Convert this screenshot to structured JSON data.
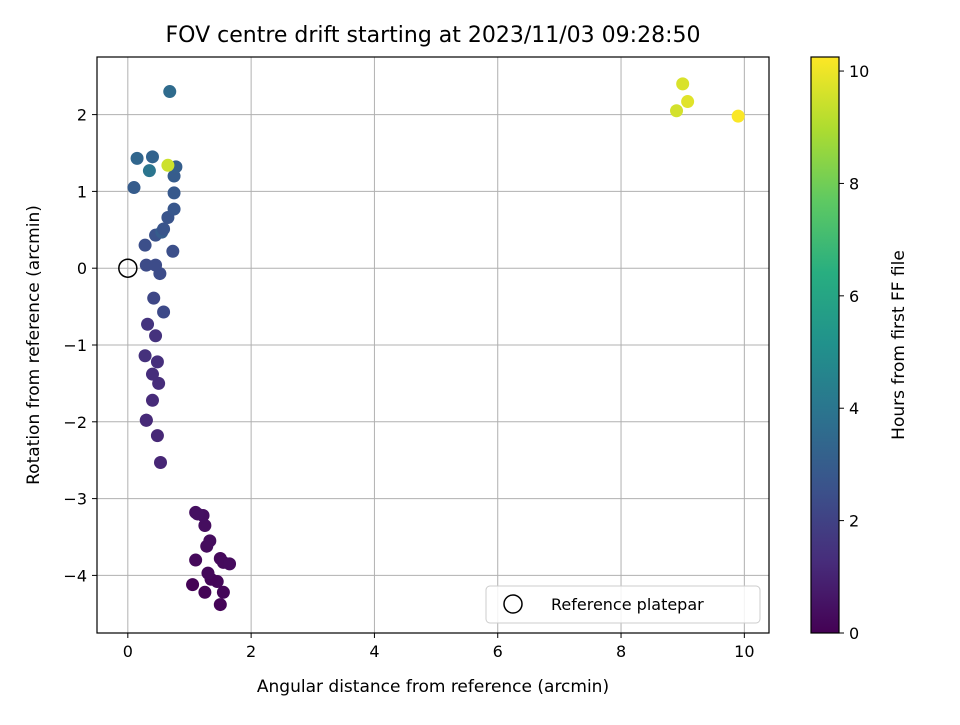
{
  "chart_data": {
    "type": "scatter",
    "title": "FOV centre drift starting at 2023/11/03 09:28:50",
    "xlabel": "Angular distance from reference (arcmin)",
    "ylabel": "Rotation from reference (arcmin)",
    "xlim": [
      -0.5,
      10.4
    ],
    "ylim": [
      -4.75,
      2.75
    ],
    "x_ticks": [
      0,
      2,
      4,
      6,
      8,
      10
    ],
    "y_ticks": [
      -4,
      -3,
      -2,
      -1,
      0,
      1,
      2
    ],
    "grid": true,
    "legend": {
      "placement": "lower-right",
      "entries": [
        "Reference platepar"
      ]
    },
    "reference": {
      "x": 0,
      "y": 0,
      "label": "Reference platepar"
    },
    "colorbar": {
      "label": "Hours from first FF file",
      "range": [
        0,
        10.25
      ],
      "ticks": [
        0,
        2,
        4,
        6,
        8,
        10
      ],
      "colormap": "viridis"
    },
    "points": [
      {
        "x": 1.05,
        "y": -4.12,
        "h": 0.05
      },
      {
        "x": 1.25,
        "y": -4.22,
        "h": 0.08
      },
      {
        "x": 1.5,
        "y": -4.38,
        "h": 0.1
      },
      {
        "x": 1.55,
        "y": -4.22,
        "h": 0.15
      },
      {
        "x": 1.45,
        "y": -4.08,
        "h": 0.18
      },
      {
        "x": 1.35,
        "y": -4.05,
        "h": 0.12
      },
      {
        "x": 1.3,
        "y": -3.97,
        "h": 0.2
      },
      {
        "x": 1.1,
        "y": -3.8,
        "h": 0.25
      },
      {
        "x": 1.5,
        "y": -3.78,
        "h": 0.22
      },
      {
        "x": 1.55,
        "y": -3.83,
        "h": 0.28
      },
      {
        "x": 1.65,
        "y": -3.85,
        "h": 0.3
      },
      {
        "x": 1.28,
        "y": -3.62,
        "h": 0.32
      },
      {
        "x": 1.33,
        "y": -3.55,
        "h": 0.35
      },
      {
        "x": 1.25,
        "y": -3.35,
        "h": 0.38
      },
      {
        "x": 1.22,
        "y": -3.22,
        "h": 0.4
      },
      {
        "x": 1.1,
        "y": -3.18,
        "h": 0.42
      },
      {
        "x": 1.13,
        "y": -3.2,
        "h": 0.45
      },
      {
        "x": 0.53,
        "y": -2.53,
        "h": 1.1
      },
      {
        "x": 0.48,
        "y": -2.18,
        "h": 1.15
      },
      {
        "x": 0.3,
        "y": -1.98,
        "h": 1.2
      },
      {
        "x": 0.3,
        "y": -1.98,
        "h": 1.22
      },
      {
        "x": 0.4,
        "y": -1.72,
        "h": 1.25
      },
      {
        "x": 0.5,
        "y": -1.5,
        "h": 1.3
      },
      {
        "x": 0.4,
        "y": -1.38,
        "h": 1.35
      },
      {
        "x": 0.48,
        "y": -1.22,
        "h": 1.4
      },
      {
        "x": 0.28,
        "y": -1.14,
        "h": 1.45
      },
      {
        "x": 0.45,
        "y": -0.88,
        "h": 1.5
      },
      {
        "x": 0.32,
        "y": -0.73,
        "h": 1.55
      },
      {
        "x": 0.58,
        "y": -0.57,
        "h": 2.3
      },
      {
        "x": 0.42,
        "y": -0.39,
        "h": 2.2
      },
      {
        "x": 0.52,
        "y": -0.07,
        "h": 2.4
      },
      {
        "x": 0.3,
        "y": 0.04,
        "h": 2.35
      },
      {
        "x": 0.45,
        "y": 0.04,
        "h": 2.4
      },
      {
        "x": 0.28,
        "y": 0.3,
        "h": 2.5
      },
      {
        "x": 0.73,
        "y": 0.22,
        "h": 2.5
      },
      {
        "x": 0.45,
        "y": 0.43,
        "h": 2.6
      },
      {
        "x": 0.55,
        "y": 0.47,
        "h": 3.0
      },
      {
        "x": 0.58,
        "y": 0.51,
        "h": 2.7
      },
      {
        "x": 0.65,
        "y": 0.66,
        "h": 2.7
      },
      {
        "x": 0.75,
        "y": 0.77,
        "h": 2.8
      },
      {
        "x": 0.75,
        "y": 0.98,
        "h": 2.9
      },
      {
        "x": 0.1,
        "y": 1.05,
        "h": 3.0
      },
      {
        "x": 0.75,
        "y": 1.2,
        "h": 3.0
      },
      {
        "x": 0.78,
        "y": 1.32,
        "h": 3.1
      },
      {
        "x": 0.35,
        "y": 1.27,
        "h": 4.0
      },
      {
        "x": 0.15,
        "y": 1.43,
        "h": 3.4
      },
      {
        "x": 0.4,
        "y": 1.45,
        "h": 3.3
      },
      {
        "x": 0.68,
        "y": 2.3,
        "h": 3.6
      },
      {
        "x": 0.65,
        "y": 1.34,
        "h": 9.5
      },
      {
        "x": 8.9,
        "y": 2.05,
        "h": 9.6
      },
      {
        "x": 9.0,
        "y": 2.4,
        "h": 9.7
      },
      {
        "x": 9.08,
        "y": 2.17,
        "h": 9.8
      },
      {
        "x": 9.9,
        "y": 1.98,
        "h": 10.2
      }
    ]
  }
}
